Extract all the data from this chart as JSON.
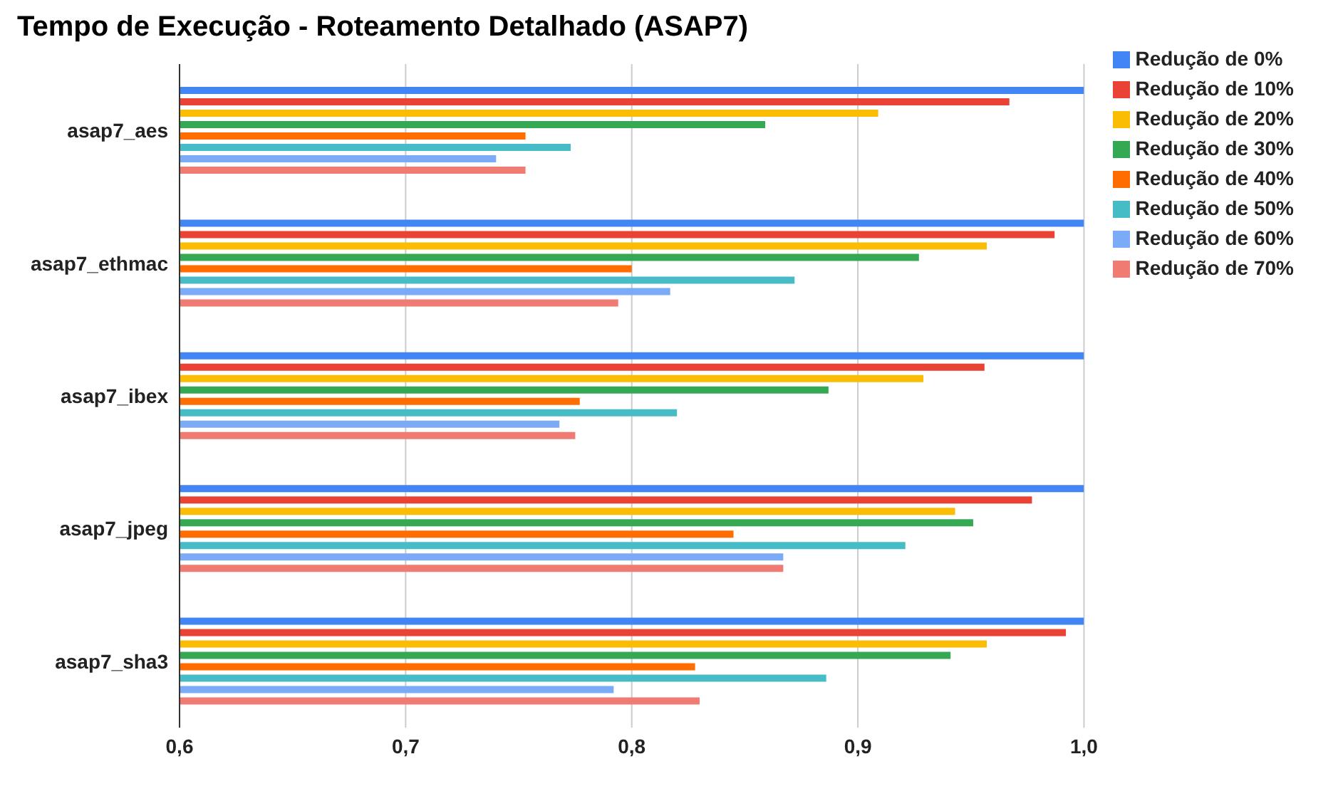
{
  "chart_data": {
    "type": "bar",
    "orientation": "horizontal",
    "title": "Tempo de Execução - Roteamento Detalhado (ASAP7)",
    "categories": [
      "asap7_aes",
      "asap7_ethmac",
      "asap7_ibex",
      "asap7_jpeg",
      "asap7_sha3"
    ],
    "series": [
      {
        "name": "Redução de 0%",
        "color": "#4285f4",
        "values": [
          1.0,
          1.0,
          1.0,
          1.0,
          1.0
        ]
      },
      {
        "name": "Redução de 10%",
        "color": "#ea4335",
        "values": [
          0.967,
          0.987,
          0.956,
          0.977,
          0.992
        ]
      },
      {
        "name": "Redução de 20%",
        "color": "#fbbc04",
        "values": [
          0.909,
          0.957,
          0.929,
          0.943,
          0.957
        ]
      },
      {
        "name": "Redução de 30%",
        "color": "#34a853",
        "values": [
          0.859,
          0.927,
          0.887,
          0.951,
          0.941
        ]
      },
      {
        "name": "Redução de 40%",
        "color": "#ff6d01",
        "values": [
          0.753,
          0.8,
          0.777,
          0.845,
          0.828
        ]
      },
      {
        "name": "Redução de 50%",
        "color": "#46bdc6",
        "values": [
          0.773,
          0.872,
          0.82,
          0.921,
          0.886
        ]
      },
      {
        "name": "Redução de 60%",
        "color": "#7baaf7",
        "values": [
          0.74,
          0.817,
          0.768,
          0.867,
          0.792
        ]
      },
      {
        "name": "Redução de 70%",
        "color": "#f07b72",
        "values": [
          0.753,
          0.794,
          0.775,
          0.867,
          0.83
        ]
      }
    ],
    "xlim": [
      0.6,
      1.0
    ],
    "xticks": [
      {
        "value": 0.6,
        "label": "0,6"
      },
      {
        "value": 0.7,
        "label": "0,7"
      },
      {
        "value": 0.8,
        "label": "0,8"
      },
      {
        "value": 0.9,
        "label": "0,9"
      },
      {
        "value": 1.0,
        "label": "1,0"
      }
    ],
    "grid": "x",
    "legend": "right"
  }
}
